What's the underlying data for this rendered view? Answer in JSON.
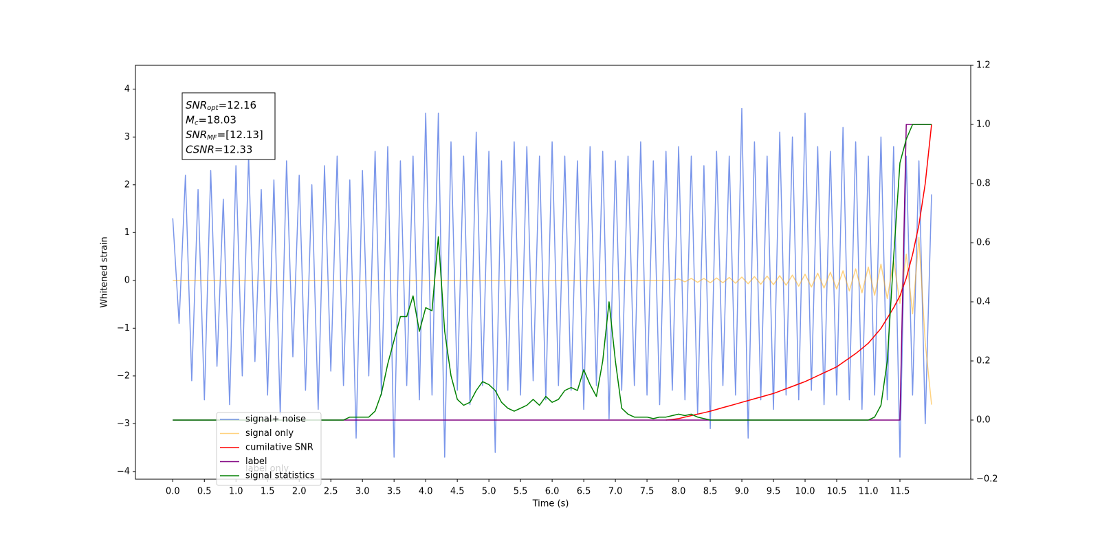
{
  "chart_data": {
    "type": "line",
    "xlabel": "Time (s)",
    "ylabel": "Whitened strain",
    "x": [
      0,
      0.1,
      0.2,
      0.3,
      0.4,
      0.5,
      0.6,
      0.7,
      0.8,
      0.9,
      1,
      1.1,
      1.2,
      1.3,
      1.4,
      1.5,
      1.6,
      1.7,
      1.8,
      1.9,
      2,
      2.1,
      2.2,
      2.3,
      2.4,
      2.5,
      2.6,
      2.7,
      2.8,
      2.9,
      3,
      3.1,
      3.2,
      3.3,
      3.4,
      3.5,
      3.6,
      3.7,
      3.8,
      3.9,
      4,
      4.1,
      4.2,
      4.3,
      4.4,
      4.5,
      4.6,
      4.7,
      4.8,
      4.9,
      5,
      5.1,
      5.2,
      5.3,
      5.4,
      5.5,
      5.6,
      5.7,
      5.8,
      5.9,
      6,
      6.1,
      6.2,
      6.3,
      6.4,
      6.5,
      6.6,
      6.7,
      6.8,
      6.9,
      7,
      7.1,
      7.2,
      7.3,
      7.4,
      7.5,
      7.6,
      7.7,
      7.8,
      7.9,
      8,
      8.1,
      8.2,
      8.3,
      8.4,
      8.5,
      8.6,
      8.7,
      8.8,
      8.9,
      9,
      9.1,
      9.2,
      9.3,
      9.4,
      9.5,
      9.6,
      9.7,
      9.8,
      9.9,
      10,
      10.1,
      10.2,
      10.3,
      10.4,
      10.5,
      10.6,
      10.7,
      10.8,
      10.9,
      11,
      11.1,
      11.2,
      11.3,
      11.4,
      11.5,
      11.6,
      11.7,
      11.8,
      11.9,
      12
    ],
    "series": [
      {
        "name": "signal+ noise",
        "color": "#4169e1",
        "alpha": 0.7,
        "values": [
          1.3,
          -0.9,
          2.2,
          -2.1,
          1.9,
          -2.5,
          2.3,
          -1.8,
          1.7,
          -2.6,
          2.4,
          -2.0,
          2.6,
          -1.7,
          1.9,
          -2.4,
          2.1,
          -2.8,
          2.5,
          -1.6,
          2.2,
          -2.3,
          2.0,
          -2.7,
          2.4,
          -1.9,
          2.6,
          -2.2,
          2.1,
          -3.3,
          2.3,
          -2.0,
          2.7,
          -2.4,
          2.8,
          -3.7,
          2.5,
          -2.2,
          2.6,
          -2.5,
          3.5,
          -2.4,
          3.5,
          -3.7,
          2.9,
          -2.3,
          2.6,
          -2.6,
          3.1,
          -2.2,
          2.7,
          -3.6,
          2.5,
          -2.3,
          2.9,
          -2.4,
          2.8,
          -2.1,
          2.6,
          -2.5,
          2.9,
          -2.2,
          2.6,
          -2.3,
          2.5,
          -2.7,
          2.8,
          -2.2,
          2.7,
          -2.9,
          2.5,
          -2.3,
          2.6,
          -2.2,
          2.9,
          -2.4,
          2.5,
          -2.6,
          2.7,
          -2.3,
          2.8,
          -2.5,
          2.6,
          -2.8,
          2.4,
          -3.1,
          2.7,
          -2.2,
          2.6,
          -2.4,
          3.6,
          -3.3,
          2.9,
          -2.5,
          2.6,
          -2.7,
          3.1,
          -2.4,
          3.0,
          -2.5,
          3.5,
          -2.3,
          2.8,
          -2.6,
          2.7,
          -2.4,
          3.2,
          -2.5,
          2.9,
          -2.7,
          2.6,
          -2.4,
          3.0,
          -2.5,
          2.8,
          -3.7,
          2.6,
          -2.4,
          2.5,
          -3.0,
          1.8
        ]
      },
      {
        "name": "signal only",
        "color": "#ffa500",
        "alpha": 0.5,
        "values": [
          0,
          0,
          0,
          0,
          0,
          0,
          0,
          0,
          0,
          0,
          0,
          0,
          0,
          0,
          0,
          0,
          0,
          0,
          0,
          0,
          0,
          0,
          0,
          0,
          0,
          0,
          0,
          0,
          0,
          0,
          0,
          0,
          0,
          0,
          0,
          0,
          0,
          0,
          0,
          0,
          0,
          0,
          0,
          0,
          0,
          0,
          0,
          0,
          0,
          0,
          0,
          0,
          0,
          0,
          0,
          0,
          0,
          0,
          0,
          0,
          0,
          0,
          0,
          0,
          0,
          0,
          0,
          0,
          0,
          0,
          0,
          0,
          0,
          0,
          0,
          0,
          0,
          0,
          0,
          0,
          0.03,
          -0.03,
          0.04,
          -0.04,
          0.04,
          -0.05,
          0.05,
          -0.05,
          0.06,
          -0.06,
          0.07,
          -0.07,
          0.08,
          -0.08,
          0.09,
          -0.09,
          0.1,
          -0.1,
          0.11,
          -0.12,
          0.13,
          -0.14,
          0.15,
          -0.16,
          0.17,
          -0.18,
          0.2,
          -0.22,
          0.24,
          -0.26,
          0.28,
          -0.31,
          0.34,
          -0.38,
          0.42,
          -0.48,
          0.55,
          -0.7,
          0.9,
          -1.3,
          -2.6
        ]
      },
      {
        "name": "cumilative SNR",
        "color": "#ff0000",
        "axis": "y2",
        "values": [
          null,
          null,
          null,
          null,
          null,
          null,
          null,
          null,
          null,
          null,
          null,
          null,
          null,
          null,
          null,
          null,
          null,
          null,
          null,
          null,
          null,
          null,
          null,
          null,
          null,
          null,
          null,
          null,
          null,
          null,
          null,
          null,
          null,
          null,
          null,
          null,
          null,
          null,
          null,
          null,
          null,
          null,
          null,
          null,
          null,
          null,
          null,
          null,
          null,
          null,
          null,
          null,
          null,
          null,
          null,
          null,
          null,
          null,
          null,
          null,
          null,
          null,
          null,
          null,
          null,
          null,
          null,
          null,
          null,
          null,
          null,
          null,
          null,
          null,
          null,
          null,
          null,
          null,
          0,
          0.002,
          0.005,
          0.01,
          0.015,
          0.02,
          0.025,
          0.03,
          0.036,
          0.042,
          0.048,
          0.054,
          0.06,
          0.066,
          0.072,
          0.078,
          0.084,
          0.09,
          0.098,
          0.106,
          0.114,
          0.122,
          0.13,
          0.14,
          0.15,
          0.16,
          0.17,
          0.18,
          0.195,
          0.21,
          0.225,
          0.242,
          0.26,
          0.285,
          0.31,
          0.345,
          0.38,
          0.42,
          0.48,
          0.56,
          0.66,
          0.8,
          1.0
        ]
      },
      {
        "name": "label",
        "color": "#800080",
        "axis": "y2",
        "values": [
          0,
          0,
          0,
          0,
          0,
          0,
          0,
          0,
          0,
          0,
          0,
          0,
          0,
          0,
          0,
          0,
          0,
          0,
          0,
          0,
          0,
          0,
          0,
          0,
          0,
          0,
          0,
          0,
          0,
          0,
          0,
          0,
          0,
          0,
          0,
          0,
          0,
          0,
          0,
          0,
          0,
          0,
          0,
          0,
          0,
          0,
          0,
          0,
          0,
          0,
          0,
          0,
          0,
          0,
          0,
          0,
          0,
          0,
          0,
          0,
          0,
          0,
          0,
          0,
          0,
          0,
          0,
          0,
          0,
          0,
          0,
          0,
          0,
          0,
          0,
          0,
          0,
          0,
          0,
          0,
          0,
          0,
          0,
          0,
          0,
          0,
          0,
          0,
          0,
          0,
          0,
          0,
          0,
          0,
          0,
          0,
          0,
          0,
          0,
          0,
          0,
          0,
          0,
          0,
          0,
          0,
          0,
          0,
          0,
          0,
          0,
          0,
          0,
          0,
          0,
          0,
          1,
          1,
          1,
          1,
          1
        ]
      },
      {
        "name": "signal statistics",
        "color": "#008000",
        "axis": "y2",
        "values": [
          0,
          0,
          0,
          0,
          0,
          0,
          0,
          0,
          0,
          0,
          0,
          0,
          0,
          0,
          0,
          0,
          0,
          0,
          0,
          0,
          0,
          0,
          0,
          0,
          0,
          0,
          0,
          0,
          0.01,
          0.01,
          0.01,
          0.01,
          0.03,
          0.09,
          0.19,
          0.27,
          0.35,
          0.35,
          0.42,
          0.3,
          0.38,
          0.37,
          0.62,
          0.3,
          0.15,
          0.07,
          0.05,
          0.06,
          0.1,
          0.13,
          0.12,
          0.1,
          0.06,
          0.04,
          0.03,
          0.04,
          0.05,
          0.07,
          0.05,
          0.08,
          0.06,
          0.07,
          0.1,
          0.11,
          0.1,
          0.17,
          0.12,
          0.08,
          0.2,
          0.4,
          0.2,
          0.04,
          0.02,
          0.01,
          0.01,
          0.01,
          0.005,
          0.01,
          0.01,
          0.015,
          0.02,
          0.015,
          0.02,
          0.01,
          0.005,
          0,
          0,
          0,
          0,
          0,
          0,
          0,
          0,
          0,
          0,
          0,
          0,
          0,
          0,
          0,
          0,
          0,
          0,
          0,
          0,
          0,
          0,
          0,
          0,
          0,
          0,
          0.01,
          0.05,
          0.2,
          0.55,
          0.87,
          0.95,
          1.0,
          1.0,
          1.0,
          1.0
        ]
      }
    ],
    "ghost_legend": "label only",
    "legend": "lower left",
    "annotations": [
      {
        "text": "SNR",
        "sub": "opt",
        "rest": "=12.16"
      },
      {
        "text": "M",
        "sub": "c",
        "rest": "=18.03"
      },
      {
        "text": "SNR",
        "sub": "MF",
        "rest": "=[12.13]"
      },
      {
        "text": "CSNR",
        "rest": "=12.33"
      }
    ],
    "xlim": [
      -0.59,
      12.62
    ],
    "xticks": [
      {
        "value": 0,
        "label": "0.0"
      },
      {
        "value": 0.5,
        "label": "0.5"
      },
      {
        "value": 1,
        "label": "1.0"
      },
      {
        "value": 1.5,
        "label": "1.5"
      },
      {
        "value": 2,
        "label": "2.0"
      },
      {
        "value": 2.5,
        "label": "2.5"
      },
      {
        "value": 3,
        "label": "3.0"
      },
      {
        "value": 3.5,
        "label": "3.5"
      },
      {
        "value": 4,
        "label": "4.0"
      },
      {
        "value": 4.5,
        "label": "4.5"
      },
      {
        "value": 5,
        "label": "5.0"
      },
      {
        "value": 5.5,
        "label": "5.5"
      },
      {
        "value": 6,
        "label": "6.0"
      },
      {
        "value": 6.5,
        "label": "6.5"
      },
      {
        "value": 7,
        "label": "7.0"
      },
      {
        "value": 7.5,
        "label": "7.5"
      },
      {
        "value": 8,
        "label": "8.0"
      },
      {
        "value": 8.5,
        "label": "8.5"
      },
      {
        "value": 9,
        "label": "9.0"
      },
      {
        "value": 9.5,
        "label": "9.5"
      },
      {
        "value": 10,
        "label": "10.0"
      },
      {
        "value": 10.5,
        "label": "10.5"
      },
      {
        "value": 11,
        "label": "11.0"
      },
      {
        "value": 11.5,
        "label": "11.5"
      }
    ],
    "ylim": [
      -4.16,
      4.5
    ],
    "yticks": [
      {
        "value": -4,
        "label": "−4"
      },
      {
        "value": -3,
        "label": "−3"
      },
      {
        "value": -2,
        "label": "−2"
      },
      {
        "value": -1,
        "label": "−1"
      },
      0,
      1,
      2,
      3,
      4
    ],
    "y2lim": [
      -0.2,
      1.2
    ],
    "y2ticks": [
      {
        "value": -0.2,
        "label": "−0.2"
      },
      {
        "value": 0,
        "label": "0.0"
      },
      {
        "value": 0.2,
        "label": "0.2"
      },
      {
        "value": 0.4,
        "label": "0.4"
      },
      {
        "value": 0.6,
        "label": "0.6"
      },
      {
        "value": 0.8,
        "label": "0.8"
      },
      {
        "value": 1,
        "label": "1.0"
      },
      {
        "value": 1.2,
        "label": "1.2"
      }
    ]
  }
}
